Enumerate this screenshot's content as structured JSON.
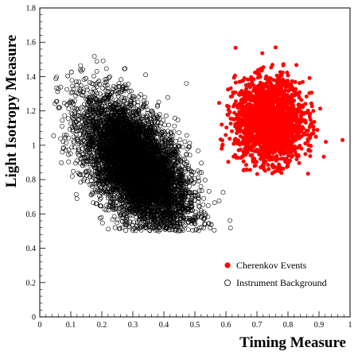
{
  "chart_data": {
    "type": "scatter",
    "title": "",
    "xlabel": "Timing Measure",
    "ylabel": "Light Isotropy Measure",
    "xlim": [
      0,
      1
    ],
    "ylim": [
      0,
      1.8
    ],
    "x_ticks": [
      "0",
      "0.1",
      "0.2",
      "0.3",
      "0.4",
      "0.5",
      "0.6",
      "0.7",
      "0.8",
      "0.9",
      "1"
    ],
    "y_ticks": [
      "0",
      "0.2",
      "0.4",
      "0.6",
      "0.8",
      "1",
      "1.2",
      "1.4",
      "1.6",
      "1.8"
    ],
    "grid": false,
    "legend_position": "bottom-right",
    "series": [
      {
        "name": "Cherenkov Events",
        "marker": "filled-circle",
        "color": "#ff0000",
        "center": [
          0.74,
          1.14
        ],
        "spread": [
          0.055,
          0.12
        ],
        "x_range": [
          0.5,
          1.0
        ],
        "y_range": [
          0.82,
          1.6
        ],
        "approx_count": 2000
      },
      {
        "name": "Instrument Background",
        "marker": "open-circle",
        "color": "#000000",
        "center": [
          0.31,
          0.88
        ],
        "spread": [
          0.085,
          0.19
        ],
        "x_range": [
          0.03,
          0.67
        ],
        "y_range": [
          0.5,
          1.62
        ],
        "approx_count": 7000
      }
    ]
  }
}
